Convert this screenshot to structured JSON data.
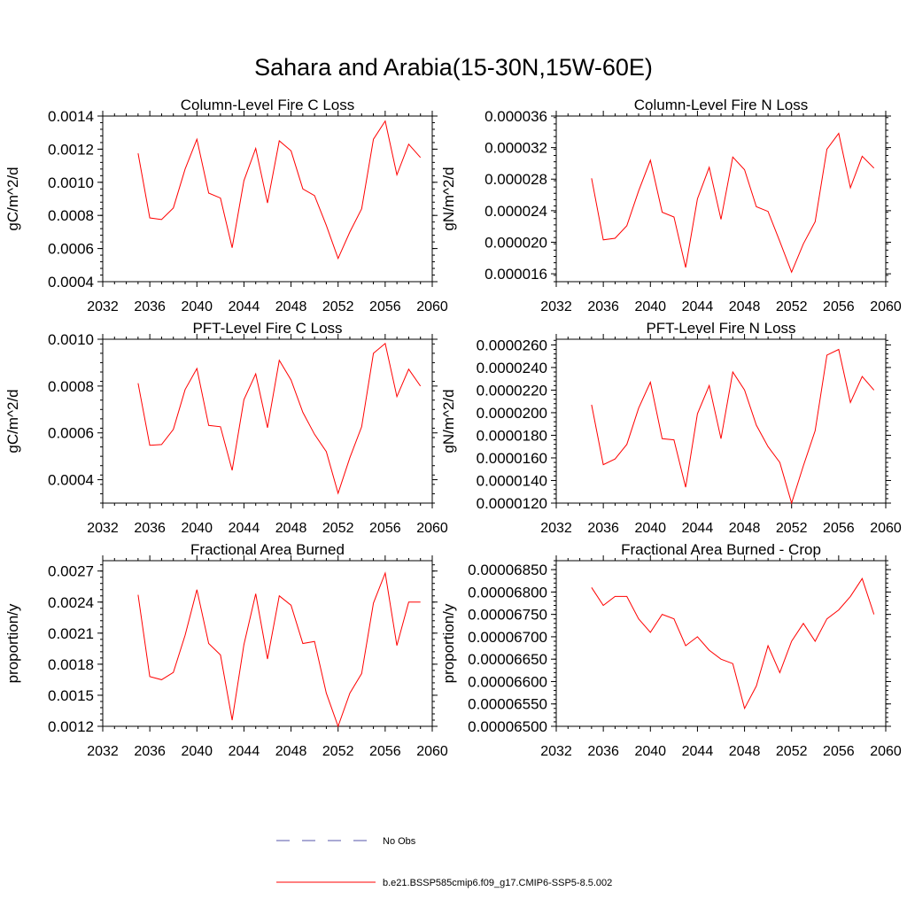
{
  "title": "Sahara and Arabia(15-30N,15W-60E)",
  "legend": {
    "items": [
      {
        "label": "No Obs",
        "color": "#5555aa",
        "dash": true
      },
      {
        "label": "b.e21.BSSP585cmip6.f09_g17.CMIP6-SSP5-8.5.002",
        "color": "#ff0000",
        "dash": false
      }
    ]
  },
  "series_color": "#ff0000",
  "chart_data": [
    {
      "type": "line",
      "title": "Column-Level Fire C Loss",
      "ylabel": "gC/m^2/d",
      "xlim": [
        2032,
        2060
      ],
      "ylim": [
        0.0004,
        0.0014
      ],
      "x_ticks": [
        2032,
        2036,
        2040,
        2044,
        2048,
        2052,
        2056,
        2060
      ],
      "x_tick_labels": [
        "2032",
        "2036",
        "2040",
        "2044",
        "2048",
        "2052",
        "2056",
        "2060"
      ],
      "y_ticks": [
        0.0004,
        0.0006,
        0.0008,
        0.001,
        0.0012,
        0.0014
      ],
      "y_tick_labels": [
        "0.0004",
        "0.0006",
        "0.0008",
        "0.0010",
        "0.0012",
        "0.0014"
      ],
      "x": [
        2035,
        2036,
        2037,
        2038,
        2039,
        2040,
        2041,
        2042,
        2043,
        2044,
        2045,
        2046,
        2047,
        2048,
        2049,
        2050,
        2051,
        2052,
        2053,
        2054,
        2055,
        2056,
        2057,
        2058,
        2059
      ],
      "series": [
        {
          "values": [
            0.001175,
            0.000785,
            0.000775,
            0.000845,
            0.00108,
            0.00126,
            0.000935,
            0.000905,
            0.000605,
            0.00101,
            0.001205,
            0.000875,
            0.00125,
            0.00119,
            0.00096,
            0.00092,
            0.00074,
            0.00054,
            0.0007,
            0.00084,
            0.00126,
            0.00137,
            0.001045,
            0.00123,
            0.00115
          ]
        }
      ]
    },
    {
      "type": "line",
      "title": "Column-Level Fire N Loss",
      "ylabel": "gN/m^2/d",
      "xlim": [
        2032,
        2060
      ],
      "ylim": [
        1.5e-05,
        3.6e-05
      ],
      "x_ticks": [
        2032,
        2036,
        2040,
        2044,
        2048,
        2052,
        2056,
        2060
      ],
      "x_tick_labels": [
        "2032",
        "2036",
        "2040",
        "2044",
        "2048",
        "2052",
        "2056",
        "2060"
      ],
      "y_ticks": [
        1.6e-05,
        2e-05,
        2.4e-05,
        2.8e-05,
        3.2e-05,
        3.6e-05
      ],
      "y_tick_labels": [
        "0.000016",
        "0.000020",
        "0.000024",
        "0.000028",
        "0.000032",
        "0.000036"
      ],
      "x": [
        2035,
        2036,
        2037,
        2038,
        2039,
        2040,
        2041,
        2042,
        2043,
        2044,
        2045,
        2046,
        2047,
        2048,
        2049,
        2050,
        2051,
        2052,
        2053,
        2054,
        2055,
        2056,
        2057,
        2058,
        2059
      ],
      "series": [
        {
          "values": [
            2.81e-05,
            2.03e-05,
            2.05e-05,
            2.21e-05,
            2.65e-05,
            3.04e-05,
            2.38e-05,
            2.32e-05,
            1.68e-05,
            2.55e-05,
            2.95e-05,
            2.29e-05,
            3.08e-05,
            2.92e-05,
            2.45e-05,
            2.39e-05,
            2.01e-05,
            1.62e-05,
            1.98e-05,
            2.26e-05,
            3.18e-05,
            3.38e-05,
            2.69e-05,
            3.09e-05,
            2.94e-05
          ]
        }
      ]
    },
    {
      "type": "line",
      "title": "PFT-Level Fire C Loss",
      "ylabel": "gC/m^2/d",
      "xlim": [
        2032,
        2060
      ],
      "ylim": [
        0.0003,
        0.001
      ],
      "x_ticks": [
        2032,
        2036,
        2040,
        2044,
        2048,
        2052,
        2056,
        2060
      ],
      "x_tick_labels": [
        "2032",
        "2036",
        "2040",
        "2044",
        "2048",
        "2052",
        "2056",
        "2060"
      ],
      "y_ticks": [
        0.0004,
        0.0006,
        0.0008,
        0.001
      ],
      "y_tick_labels": [
        "0.0004",
        "0.0006",
        "0.0008",
        "0.0010"
      ],
      "x": [
        2035,
        2036,
        2037,
        2038,
        2039,
        2040,
        2041,
        2042,
        2043,
        2044,
        2045,
        2046,
        2047,
        2048,
        2049,
        2050,
        2051,
        2052,
        2053,
        2054,
        2055,
        2056,
        2057,
        2058,
        2059
      ],
      "series": [
        {
          "values": [
            0.000812,
            0.000547,
            0.00055,
            0.000615,
            0.000785,
            0.000875,
            0.000632,
            0.000626,
            0.00044,
            0.000742,
            0.000852,
            0.000622,
            0.00091,
            0.000826,
            0.000688,
            0.000594,
            0.00052,
            0.000342,
            0.000494,
            0.000626,
            0.00094,
            0.000982,
            0.000755,
            0.000872,
            0.0008
          ]
        }
      ]
    },
    {
      "type": "line",
      "title": "PFT-Level Fire N Loss",
      "ylabel": "gN/m^2/d",
      "xlim": [
        2032,
        2060
      ],
      "ylim": [
        1.2e-05,
        2.65e-05
      ],
      "x_ticks": [
        2032,
        2036,
        2040,
        2044,
        2048,
        2052,
        2056,
        2060
      ],
      "x_tick_labels": [
        "2032",
        "2036",
        "2040",
        "2044",
        "2048",
        "2052",
        "2056",
        "2060"
      ],
      "y_ticks": [
        1.2e-05,
        1.4e-05,
        1.6e-05,
        1.8e-05,
        2e-05,
        2.2e-05,
        2.4e-05,
        2.6e-05
      ],
      "y_tick_labels": [
        "0.0000120",
        "0.0000140",
        "0.0000160",
        "0.0000180",
        "0.0000200",
        "0.0000220",
        "0.0000240",
        "0.0000260"
      ],
      "x": [
        2035,
        2036,
        2037,
        2038,
        2039,
        2040,
        2041,
        2042,
        2043,
        2044,
        2045,
        2046,
        2047,
        2048,
        2049,
        2050,
        2051,
        2052,
        2053,
        2054,
        2055,
        2056,
        2057,
        2058,
        2059
      ],
      "series": [
        {
          "values": [
            2.07e-05,
            1.54e-05,
            1.59e-05,
            1.72e-05,
            2.04e-05,
            2.27e-05,
            1.77e-05,
            1.76e-05,
            1.34e-05,
            1.99e-05,
            2.24e-05,
            1.77e-05,
            2.36e-05,
            2.2e-05,
            1.89e-05,
            1.7e-05,
            1.56e-05,
            1.2e-05,
            1.53e-05,
            1.84e-05,
            2.51e-05,
            2.56e-05,
            2.09e-05,
            2.32e-05,
            2.2e-05
          ]
        }
      ]
    },
    {
      "type": "line",
      "title": "Fractional Area Burned",
      "ylabel": "proportion/y",
      "xlim": [
        2032,
        2060
      ],
      "ylim": [
        0.0012,
        0.0028
      ],
      "x_ticks": [
        2032,
        2036,
        2040,
        2044,
        2048,
        2052,
        2056,
        2060
      ],
      "x_tick_labels": [
        "2032",
        "2036",
        "2040",
        "2044",
        "2048",
        "2052",
        "2056",
        "2060"
      ],
      "y_ticks": [
        0.0012,
        0.0015,
        0.0018,
        0.0021,
        0.0024,
        0.0027
      ],
      "y_tick_labels": [
        "0.0012",
        "0.0015",
        "0.0018",
        "0.0021",
        "0.0024",
        "0.0027"
      ],
      "x": [
        2035,
        2036,
        2037,
        2038,
        2039,
        2040,
        2041,
        2042,
        2043,
        2044,
        2045,
        2046,
        2047,
        2048,
        2049,
        2050,
        2051,
        2052,
        2053,
        2054,
        2055,
        2056,
        2057,
        2058,
        2059
      ],
      "series": [
        {
          "values": [
            0.00247,
            0.00168,
            0.00165,
            0.00172,
            0.00208,
            0.00252,
            0.002,
            0.00189,
            0.00126,
            0.00199,
            0.00248,
            0.00185,
            0.00246,
            0.00237,
            0.002,
            0.00202,
            0.00152,
            0.0012,
            0.00152,
            0.00171,
            0.00239,
            0.00268,
            0.00198,
            0.0024,
            0.0024
          ]
        }
      ]
    },
    {
      "type": "line",
      "title": "Fractional Area Burned - Crop",
      "ylabel": "proportion/y",
      "xlim": [
        2032,
        2060
      ],
      "ylim": [
        6.5e-05,
        6.87e-05
      ],
      "x_ticks": [
        2032,
        2036,
        2040,
        2044,
        2048,
        2052,
        2056,
        2060
      ],
      "x_tick_labels": [
        "2032",
        "2036",
        "2040",
        "2044",
        "2048",
        "2052",
        "2056",
        "2060"
      ],
      "y_ticks": [
        6.5e-05,
        6.55e-05,
        6.6e-05,
        6.65e-05,
        6.7e-05,
        6.75e-05,
        6.8e-05,
        6.85e-05
      ],
      "y_tick_labels": [
        "0.00006500",
        "0.00006550",
        "0.00006600",
        "0.00006650",
        "0.00006700",
        "0.00006750",
        "0.00006800",
        "0.00006850"
      ],
      "x": [
        2035,
        2036,
        2037,
        2038,
        2039,
        2040,
        2041,
        2042,
        2043,
        2044,
        2045,
        2046,
        2047,
        2048,
        2049,
        2050,
        2051,
        2052,
        2053,
        2054,
        2055,
        2056,
        2057,
        2058,
        2059
      ],
      "series": [
        {
          "values": [
            6.81e-05,
            6.77e-05,
            6.79e-05,
            6.79e-05,
            6.74e-05,
            6.71e-05,
            6.75e-05,
            6.74e-05,
            6.68e-05,
            6.7e-05,
            6.67e-05,
            6.65e-05,
            6.64e-05,
            6.54e-05,
            6.59e-05,
            6.68e-05,
            6.62e-05,
            6.69e-05,
            6.73e-05,
            6.69e-05,
            6.74e-05,
            6.76e-05,
            6.79e-05,
            6.83e-05,
            6.75e-05
          ]
        }
      ]
    }
  ]
}
